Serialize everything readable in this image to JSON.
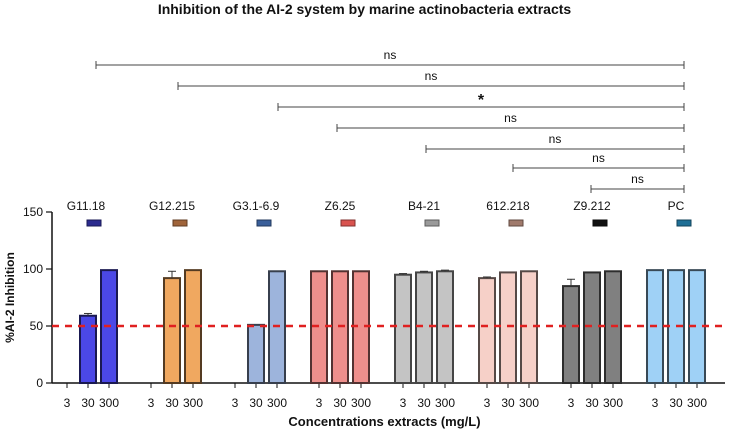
{
  "chart_data": {
    "type": "bar",
    "title": "Inhibition of the AI-2 system by marine actinobacteria extracts",
    "xlabel": "Concentrations extracts (mg/L)",
    "ylabel": "%AI-2 Inhibition",
    "ylim": [
      0,
      150
    ],
    "yticks": [
      "0",
      "50",
      "100",
      "150"
    ],
    "concentrations": [
      "3",
      "30",
      "300"
    ],
    "threshold": 50,
    "threshold_color": "#e02020",
    "groups": [
      {
        "name": "G11.18",
        "color": "#4b48e6",
        "values": [
          null,
          59,
          99
        ],
        "errors": [
          0,
          2,
          0
        ]
      },
      {
        "name": "G12.215",
        "color": "#f0a860",
        "values": [
          null,
          92,
          99
        ],
        "errors": [
          0,
          6,
          0
        ]
      },
      {
        "name": "G3.1-6.9",
        "color": "#9db4dc",
        "values": [
          null,
          51,
          98
        ],
        "errors": [
          0,
          0,
          0
        ]
      },
      {
        "name": "Z6.25",
        "color": "#ee8f8c",
        "values": [
          98,
          98,
          98
        ],
        "errors": [
          0,
          0,
          0
        ]
      },
      {
        "name": "B4-21",
        "color": "#c4c4c4",
        "values": [
          95,
          97,
          98
        ],
        "errors": [
          1,
          1,
          1
        ]
      },
      {
        "name": "612.218",
        "color": "#f6d0c8",
        "values": [
          92,
          97,
          98
        ],
        "errors": [
          1,
          0,
          0
        ]
      },
      {
        "name": "Z9.212",
        "color": "#808080",
        "values": [
          85,
          97,
          98
        ],
        "errors": [
          6,
          0,
          0
        ]
      },
      {
        "name": "PC",
        "color": "#9fd1f6",
        "values": [
          99,
          99,
          99
        ],
        "errors": [
          0,
          0,
          0
        ]
      }
    ],
    "comparisons": [
      {
        "group": "G11.18",
        "label": "ns"
      },
      {
        "group": "G12.215",
        "label": "ns"
      },
      {
        "group": "G3.1-6.9",
        "label": "*"
      },
      {
        "group": "Z6.25",
        "label": "ns"
      },
      {
        "group": "B4-21",
        "label": "ns"
      },
      {
        "group": "612.218",
        "label": "ns"
      },
      {
        "group": "Z9.212",
        "label": "ns"
      }
    ],
    "legend_swatches": {
      "G11.18": "#2b2b8f",
      "G12.215": "#a0643a",
      "G3.1-6.9": "#3a5f9a",
      "Z6.25": "#d9534f",
      "B4-21": "#9a9a9a",
      "612.218": "#a07a6c",
      "Z9.212": "#111111",
      "PC": "#1f6f96"
    }
  }
}
